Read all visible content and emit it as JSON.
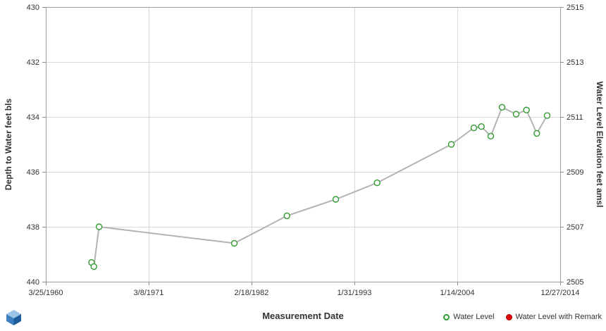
{
  "chart_data": {
    "type": "line",
    "title": "",
    "xlabel": "Measurement Date",
    "ylabel_left": "Depth to Water feet bls",
    "ylabel_right": "Water Level Elevation feet amsl",
    "x_axis": {
      "min": 1960.23,
      "max": 2014.99,
      "ticks": [
        {
          "value": 1960.23,
          "label": "3/25/1960"
        },
        {
          "value": 1971.18,
          "label": "3/8/1971"
        },
        {
          "value": 1982.13,
          "label": "2/18/1982"
        },
        {
          "value": 1993.08,
          "label": "1/31/1993"
        },
        {
          "value": 2004.04,
          "label": "1/14/2004"
        },
        {
          "value": 2014.99,
          "label": "12/27/2014"
        }
      ]
    },
    "y_axis_left": {
      "min": 430,
      "max": 440,
      "ticks": [
        430,
        432,
        434,
        436,
        438,
        440
      ]
    },
    "y_axis_right": {
      "min": 2505,
      "max": 2515,
      "labels": [
        "2515",
        "2513",
        "2511",
        "2509",
        "2507",
        "2505"
      ]
    },
    "grid": true,
    "legend_position": "bottom-right",
    "series": [
      {
        "name": "Water Level",
        "marker": "open-circle",
        "marker_color": "#2f9b2f",
        "line_color": "#b3b3b3",
        "points": [
          {
            "x": 1965.1,
            "y": 439.3
          },
          {
            "x": 1965.35,
            "y": 439.45
          },
          {
            "x": 1965.9,
            "y": 438.0
          },
          {
            "x": 1980.3,
            "y": 438.6
          },
          {
            "x": 1985.9,
            "y": 437.6
          },
          {
            "x": 1991.1,
            "y": 437.0
          },
          {
            "x": 1995.5,
            "y": 436.4
          },
          {
            "x": 2003.4,
            "y": 435.0
          },
          {
            "x": 2005.8,
            "y": 434.4
          },
          {
            "x": 2006.6,
            "y": 434.35
          },
          {
            "x": 2007.6,
            "y": 434.7
          },
          {
            "x": 2008.8,
            "y": 433.65
          },
          {
            "x": 2010.3,
            "y": 433.9
          },
          {
            "x": 2011.4,
            "y": 433.75
          },
          {
            "x": 2012.5,
            "y": 434.6
          },
          {
            "x": 2013.6,
            "y": 433.95
          }
        ]
      },
      {
        "name": "Water Level with Remark",
        "marker": "filled-circle",
        "marker_color": "#e60000",
        "line_color": "#b3b3b3",
        "points": []
      }
    ],
    "legend": [
      {
        "label": "Water Level",
        "marker": "open-circle",
        "color": "#2f9b2f"
      },
      {
        "label": "Water Level with Remark",
        "marker": "filled-circle",
        "color": "#e60000"
      }
    ],
    "style": {
      "grid_color": "#d9d9d9",
      "border_color": "#9e9e9e",
      "tick_color": "#8c8c8c",
      "text_color": "#333333",
      "background": "#ffffff"
    }
  }
}
